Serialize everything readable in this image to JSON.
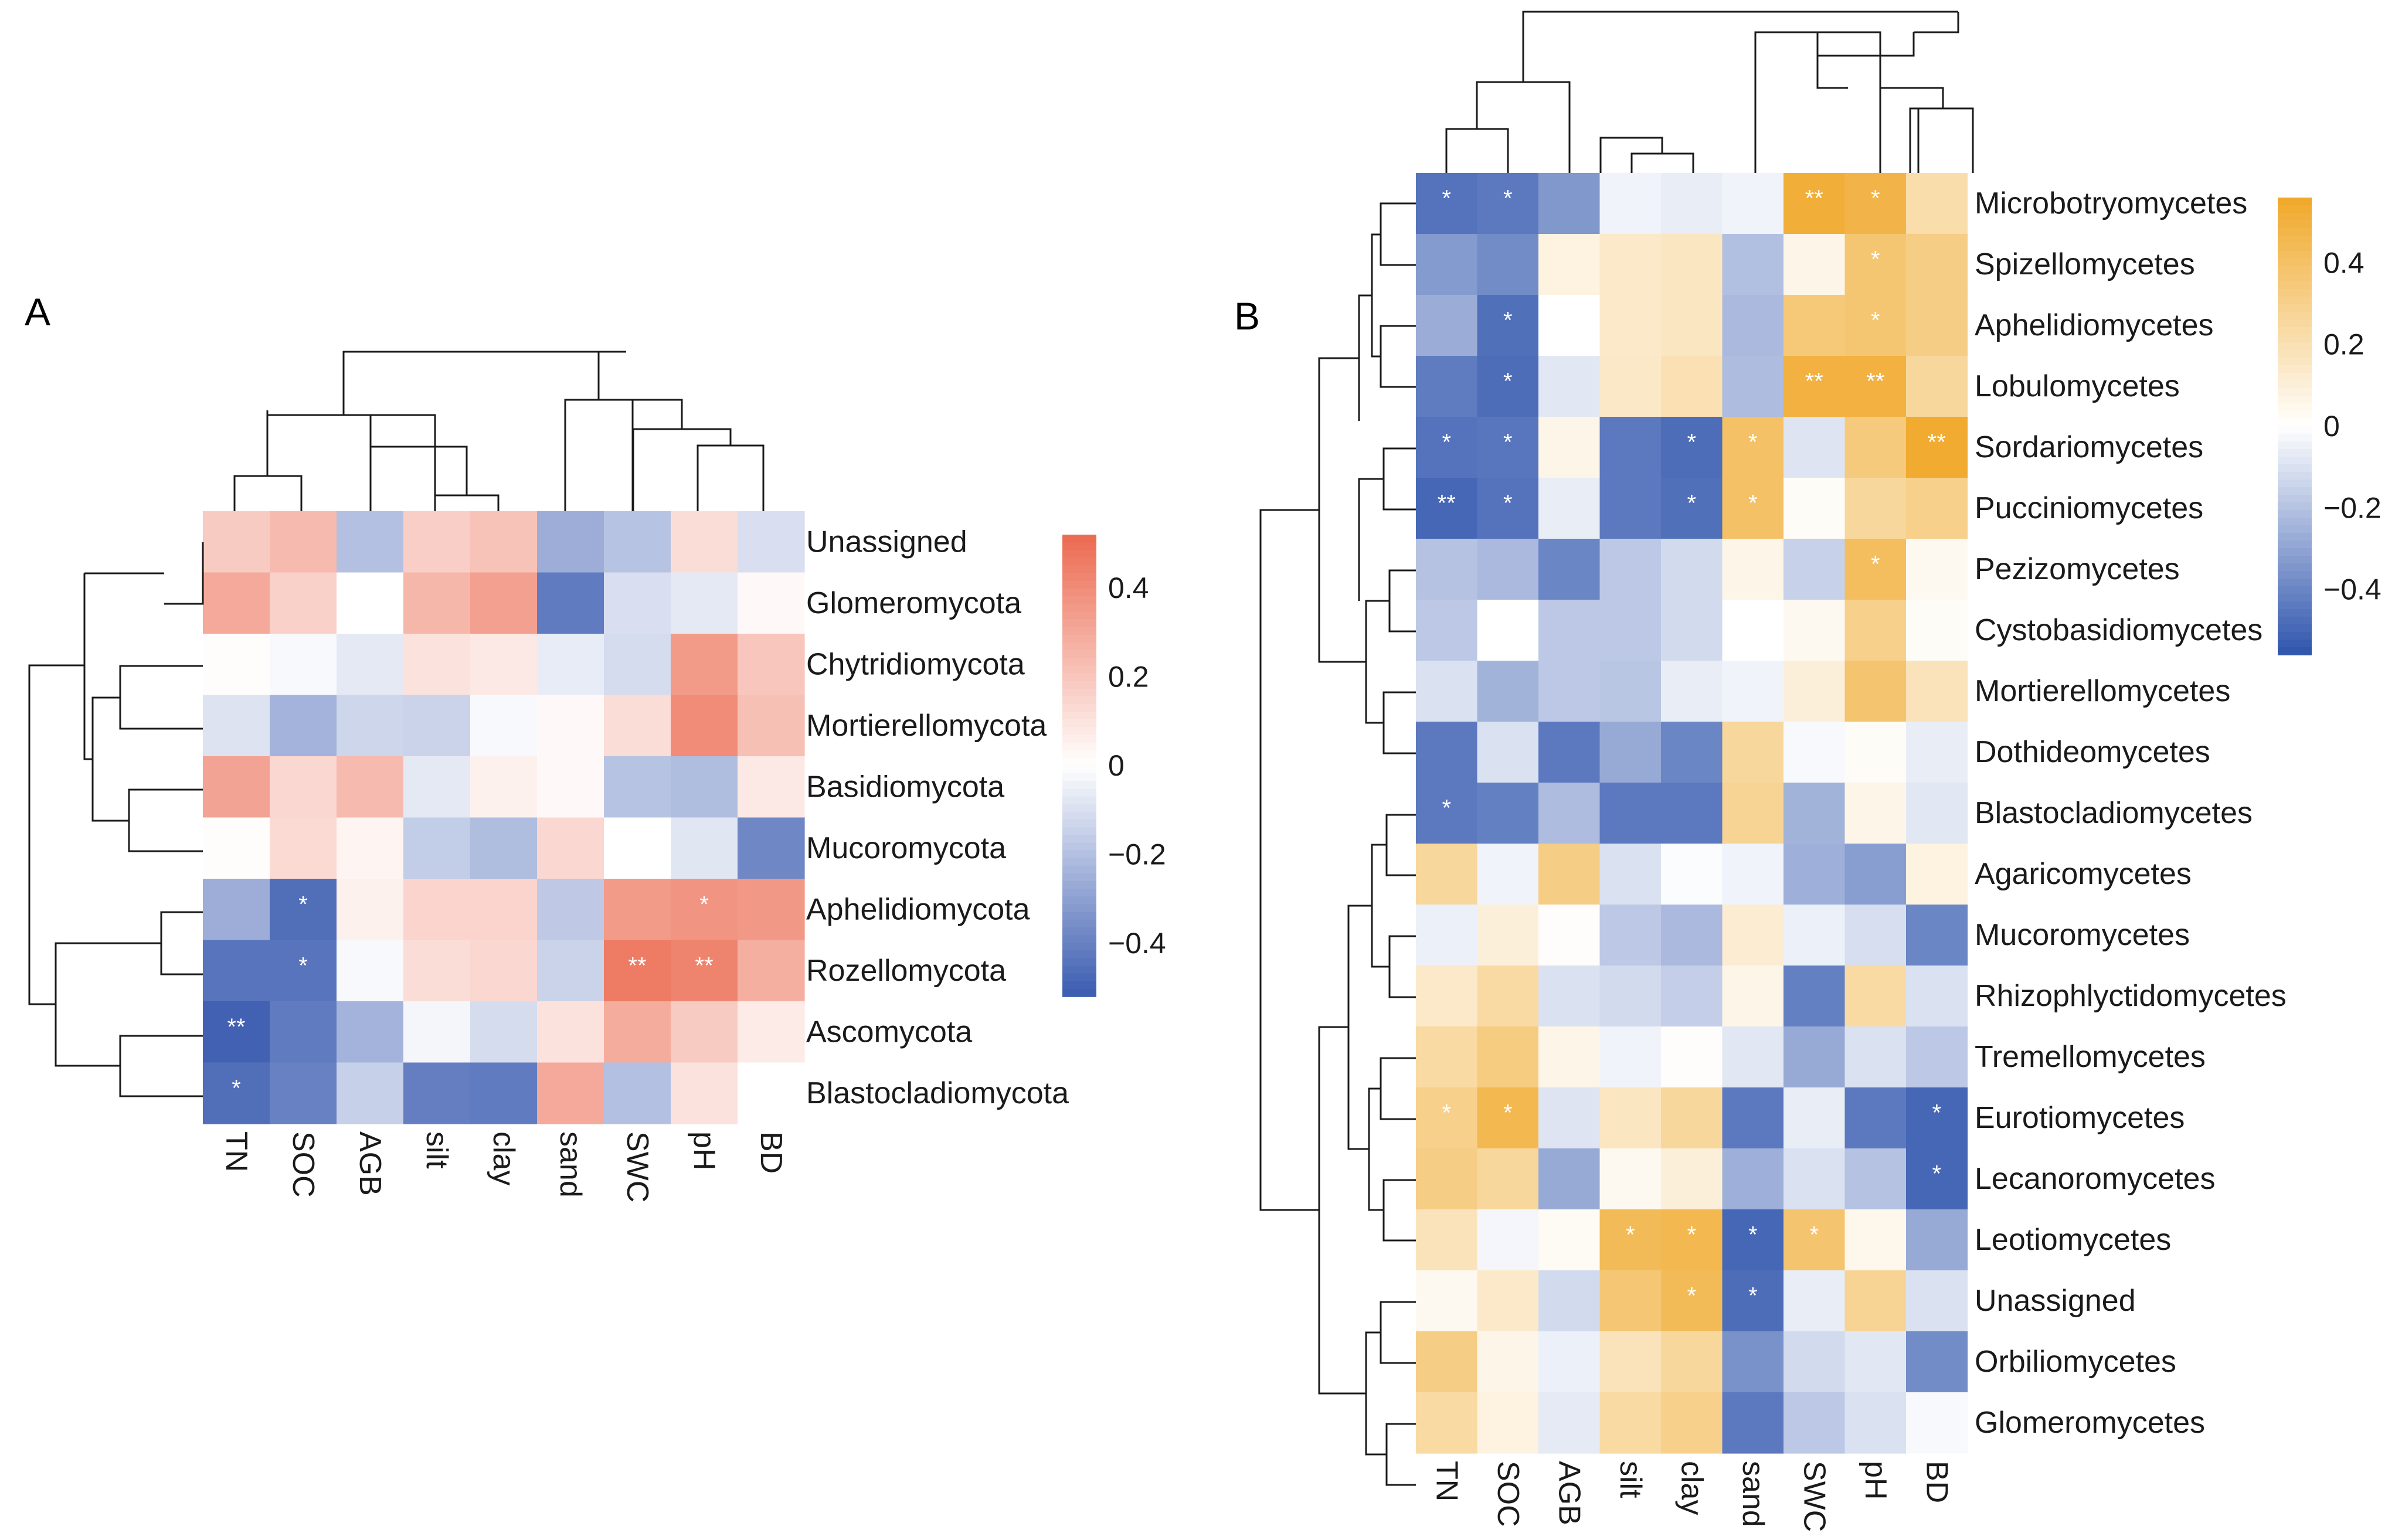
{
  "chart_data": [
    {
      "type": "heatmap",
      "panel": "A",
      "columns": [
        "TN",
        "SOC",
        "AGB",
        "silt",
        "clay",
        "sand",
        "SWC",
        "pH",
        "BD"
      ],
      "rows": [
        "Unassigned",
        "Glomeromycota",
        "Chytridiomycota",
        "Mortierellomycota",
        "Basidiomycota",
        "Mucoromycota",
        "Aphelidiomycota",
        "Rozellomycota",
        "Ascomycota",
        "Blastocladiomycota"
      ],
      "values": [
        [
          0.18,
          0.24,
          -0.2,
          0.17,
          0.21,
          -0.26,
          -0.19,
          0.12,
          -0.1
        ],
        [
          0.3,
          0.16,
          0.0,
          0.25,
          0.33,
          -0.42,
          -0.1,
          -0.07,
          0.02
        ],
        [
          0.01,
          -0.02,
          -0.07,
          0.1,
          0.08,
          -0.06,
          -0.11,
          0.35,
          0.2
        ],
        [
          -0.09,
          -0.24,
          -0.13,
          -0.14,
          -0.02,
          0.02,
          0.12,
          0.4,
          0.22
        ],
        [
          0.32,
          0.14,
          0.24,
          -0.07,
          0.05,
          0.02,
          -0.19,
          -0.21,
          0.08
        ],
        [
          0.01,
          0.13,
          0.04,
          -0.16,
          -0.21,
          0.14,
          0.0,
          -0.08,
          -0.38
        ],
        [
          -0.26,
          -0.46,
          0.05,
          0.15,
          0.15,
          -0.17,
          0.35,
          0.37,
          0.36
        ],
        [
          -0.44,
          -0.44,
          -0.02,
          0.12,
          0.14,
          -0.14,
          0.46,
          0.43,
          0.28
        ],
        [
          -0.5,
          -0.42,
          -0.24,
          -0.03,
          -0.11,
          0.1,
          0.29,
          0.18,
          0.07
        ],
        [
          -0.46,
          -0.4,
          -0.15,
          -0.41,
          -0.42,
          0.3,
          -0.2,
          0.1,
          0.0
        ]
      ],
      "significance": [
        [
          "",
          "",
          "",
          "",
          "",
          "",
          "",
          "",
          ""
        ],
        [
          "",
          "",
          "",
          "",
          "",
          "",
          "",
          "",
          ""
        ],
        [
          "",
          "",
          "",
          "",
          "",
          "",
          "",
          "",
          ""
        ],
        [
          "",
          "",
          "",
          "",
          "",
          "",
          "",
          "",
          ""
        ],
        [
          "",
          "",
          "",
          "",
          "",
          "",
          "",
          "",
          ""
        ],
        [
          "",
          "",
          "",
          "",
          "",
          "",
          "",
          "",
          ""
        ],
        [
          "",
          "*",
          "",
          "",
          "",
          "",
          "",
          "*",
          ""
        ],
        [
          "",
          "*",
          "",
          "",
          "",
          "",
          "**",
          "**",
          ""
        ],
        [
          "**",
          "",
          "",
          "",
          "",
          "",
          "",
          "",
          ""
        ],
        [
          "*",
          "",
          "",
          "",
          "",
          "",
          "",
          "",
          ""
        ]
      ],
      "color_scale": {
        "low": "#3a5bb0",
        "mid": "#ffffff",
        "high": "#ec6a50",
        "range": [
          -0.52,
          0.52
        ]
      },
      "legend_ticks": [
        "0.4",
        "0.2",
        "0",
        "−0.2",
        "−0.4"
      ],
      "legend_tick_values": [
        0.4,
        0.2,
        0,
        -0.2,
        -0.4
      ]
    },
    {
      "type": "heatmap",
      "panel": "B",
      "columns": [
        "TN",
        "SOC",
        "AGB",
        "silt",
        "clay",
        "sand",
        "SWC",
        "pH",
        "BD"
      ],
      "rows": [
        "Microbotryomycetes",
        "Spizellomycetes",
        "Aphelidiomycetes",
        "Lobulomycetes",
        "Sordariomycetes",
        "Pucciniomycetes",
        "Pezizomycetes",
        "Cystobasidiomycetes",
        "Mortierellomycetes",
        "Dothideomycetes",
        "Blastocladiomycetes",
        "Agaricomycetes",
        "Mucoromycetes",
        "Rhizophlyctidomycetes",
        "Tremellomycetes",
        "Eurotiomycetes",
        "Lecanoromycetes",
        "Leotiomycetes",
        "Unassigned",
        "Orbiliomycetes",
        "Glomeromycetes"
      ],
      "values": [
        [
          -0.46,
          -0.44,
          -0.34,
          -0.04,
          -0.06,
          -0.04,
          0.52,
          0.48,
          0.22
        ],
        [
          -0.33,
          -0.38,
          0.08,
          0.14,
          0.16,
          -0.21,
          0.06,
          0.37,
          0.32
        ],
        [
          -0.27,
          -0.47,
          0.0,
          0.14,
          0.16,
          -0.23,
          0.35,
          0.37,
          0.32
        ],
        [
          -0.43,
          -0.48,
          -0.08,
          0.15,
          0.2,
          -0.22,
          0.5,
          0.5,
          0.26
        ],
        [
          -0.46,
          -0.45,
          0.06,
          -0.44,
          -0.48,
          0.4,
          -0.09,
          0.34,
          0.54
        ],
        [
          -0.5,
          -0.46,
          -0.06,
          -0.44,
          -0.47,
          0.4,
          0.02,
          0.26,
          0.3
        ],
        [
          -0.2,
          -0.23,
          -0.4,
          -0.18,
          -0.12,
          0.06,
          -0.15,
          0.42,
          0.04
        ],
        [
          -0.18,
          0.0,
          -0.18,
          -0.18,
          -0.12,
          0.0,
          0.04,
          0.3,
          0.02
        ],
        [
          -0.1,
          -0.25,
          -0.18,
          -0.19,
          -0.06,
          -0.04,
          0.1,
          0.38,
          0.18
        ],
        [
          -0.44,
          -0.1,
          -0.44,
          -0.28,
          -0.4,
          0.26,
          -0.02,
          0.02,
          -0.06
        ],
        [
          -0.44,
          -0.42,
          -0.22,
          -0.44,
          -0.44,
          0.28,
          -0.25,
          0.06,
          -0.08
        ],
        [
          0.26,
          -0.04,
          0.32,
          -0.1,
          -0.01,
          -0.04,
          -0.26,
          -0.32,
          0.08
        ],
        [
          -0.05,
          0.1,
          0.01,
          -0.18,
          -0.23,
          0.12,
          -0.05,
          -0.11,
          -0.4
        ],
        [
          0.14,
          0.24,
          -0.1,
          -0.12,
          -0.16,
          0.06,
          -0.42,
          0.24,
          -0.1
        ],
        [
          0.24,
          0.33,
          0.06,
          -0.04,
          0.01,
          -0.08,
          -0.28,
          -0.1,
          -0.18
        ],
        [
          0.3,
          0.46,
          -0.09,
          0.16,
          0.26,
          -0.44,
          -0.06,
          -0.44,
          -0.5
        ],
        [
          0.32,
          0.26,
          -0.28,
          0.04,
          0.1,
          -0.26,
          -0.1,
          -0.2,
          -0.5
        ],
        [
          0.18,
          -0.03,
          0.03,
          0.44,
          0.46,
          -0.5,
          0.38,
          0.05,
          -0.28
        ],
        [
          0.04,
          0.14,
          -0.12,
          0.36,
          0.44,
          -0.48,
          -0.06,
          0.28,
          -0.1
        ],
        [
          0.32,
          0.06,
          -0.05,
          0.18,
          0.26,
          -0.36,
          -0.12,
          -0.08,
          -0.38
        ],
        [
          0.24,
          0.08,
          -0.07,
          0.24,
          0.3,
          -0.44,
          -0.18,
          -0.1,
          -0.02
        ]
      ],
      "significance": [
        [
          "*",
          "*",
          "",
          "",
          "",
          "",
          "**",
          "*",
          ""
        ],
        [
          "",
          "",
          "",
          "",
          "",
          "",
          "",
          "*",
          ""
        ],
        [
          "",
          "*",
          "",
          "",
          "",
          "",
          "",
          "*",
          ""
        ],
        [
          "",
          "*",
          "",
          "",
          "",
          "",
          "**",
          "**",
          ""
        ],
        [
          "*",
          "*",
          "",
          "",
          "*",
          "*",
          "",
          "",
          "**"
        ],
        [
          "**",
          "*",
          "",
          "",
          "*",
          "*",
          "",
          "",
          ""
        ],
        [
          "",
          "",
          "",
          "",
          "",
          "",
          "",
          "*",
          ""
        ],
        [
          "",
          "",
          "",
          "",
          "",
          "",
          "",
          "",
          ""
        ],
        [
          "",
          "",
          "",
          "",
          "",
          "",
          "",
          "",
          ""
        ],
        [
          "",
          "",
          "",
          "",
          "",
          "",
          "",
          "",
          ""
        ],
        [
          "*",
          "",
          "",
          "",
          "",
          "",
          "",
          "",
          ""
        ],
        [
          "",
          "",
          "",
          "",
          "",
          "",
          "",
          "",
          ""
        ],
        [
          "",
          "",
          "",
          "",
          "",
          "",
          "",
          "",
          ""
        ],
        [
          "",
          "",
          "",
          "",
          "",
          "",
          "",
          "",
          ""
        ],
        [
          "",
          "",
          "",
          "",
          "",
          "",
          "",
          "",
          ""
        ],
        [
          "*",
          "*",
          "",
          "",
          "",
          "",
          "",
          "",
          "*"
        ],
        [
          "",
          "",
          "",
          "",
          "",
          "",
          "",
          "",
          "*"
        ],
        [
          "",
          "",
          "",
          "*",
          "*",
          "*",
          "*",
          "",
          ""
        ],
        [
          "",
          "",
          "",
          "",
          "*",
          "*",
          "",
          "",
          ""
        ],
        [
          "",
          "",
          "",
          "",
          "",
          "",
          "",
          "",
          ""
        ],
        [
          "",
          "",
          "",
          "",
          "",
          "",
          "",
          "",
          ""
        ]
      ],
      "color_scale": {
        "low": "#2f55ad",
        "mid": "#ffffff",
        "high": "#f0a829",
        "range": [
          -0.56,
          0.56
        ]
      },
      "legend_ticks": [
        "0.4",
        "0.2",
        "0",
        "−0.2",
        "−0.4"
      ],
      "legend_tick_values": [
        0.4,
        0.2,
        0,
        -0.2,
        -0.4
      ]
    }
  ]
}
